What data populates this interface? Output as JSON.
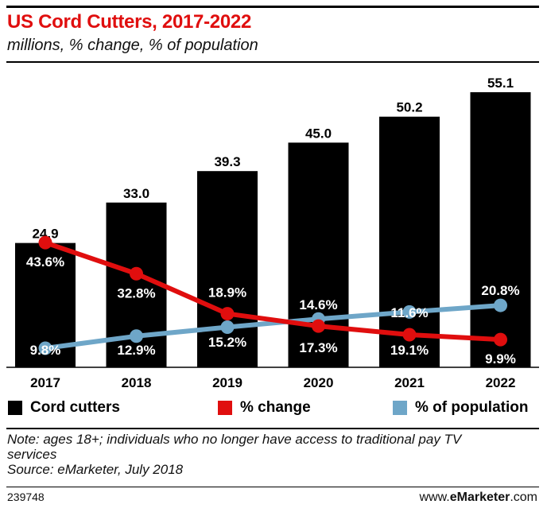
{
  "header": {
    "title": "US Cord Cutters, 2017-2022",
    "subtitle": "millions, % change, % of population"
  },
  "chart_data": {
    "type": "bar",
    "categories": [
      "2017",
      "2018",
      "2019",
      "2020",
      "2021",
      "2022"
    ],
    "series": [
      {
        "name": "Cord cutters",
        "type": "bar",
        "color": "#000000",
        "values": [
          24.9,
          33.0,
          39.3,
          45.0,
          50.2,
          55.1
        ],
        "labels": [
          "24.9",
          "33.0",
          "39.3",
          "45.0",
          "50.2",
          "55.1"
        ]
      },
      {
        "name": "% change",
        "type": "line",
        "color": "#e00e0e",
        "values": [
          43.6,
          32.8,
          18.9,
          14.6,
          11.6,
          9.9
        ],
        "labels": [
          "43.6%",
          "32.8%",
          "18.9%",
          "14.6%",
          "11.6%",
          "9.9%"
        ]
      },
      {
        "name": "% of population",
        "type": "line",
        "color": "#6ea6c8",
        "values": [
          9.8,
          12.9,
          15.2,
          17.3,
          19.1,
          20.8
        ],
        "labels": [
          "9.8%",
          "12.9%",
          "15.2%",
          "17.3%",
          "19.1%",
          "20.8%"
        ]
      }
    ]
  },
  "legend": {
    "cord_cutters": "Cord cutters",
    "pct_change": "% change",
    "pct_population": "% of population"
  },
  "footer": {
    "note_line1": "Note: ages 18+; individuals who no longer have access to traditional pay TV",
    "note_line2": "services",
    "source": "Source: eMarketer, July 2018",
    "chart_id": "239748",
    "brand_prefix": "www.",
    "brand_name": "eMarketer",
    "brand_suffix": ".com"
  }
}
